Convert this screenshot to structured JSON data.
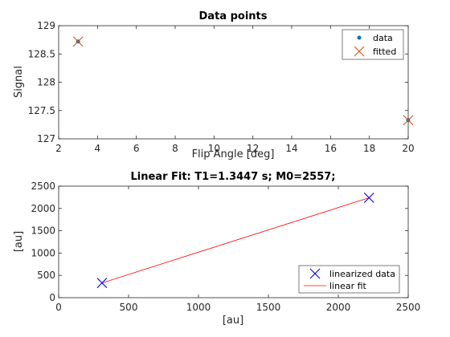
{
  "chart_data": [
    {
      "type": "scatter",
      "title": "Data points",
      "xlabel": "Flip Angle [deg]",
      "ylabel": "Signal",
      "xlim": [
        2,
        20
      ],
      "ylim": [
        127,
        129
      ],
      "xticks": [
        "2",
        "4",
        "6",
        "8",
        "10",
        "12",
        "14",
        "16",
        "18",
        "20"
      ],
      "yticks": [
        "127",
        "127.5",
        "128",
        "128.5",
        "129"
      ],
      "grid": false,
      "legend": "top-right",
      "series": [
        {
          "name": "data",
          "marker": "dot",
          "color": "#0072BD",
          "x": [
            3,
            20
          ],
          "y": [
            128.72,
            127.33
          ]
        },
        {
          "name": "fitted",
          "marker": "x",
          "color": "#D95319",
          "x": [
            3,
            20
          ],
          "y": [
            128.72,
            127.33
          ]
        }
      ]
    },
    {
      "type": "line",
      "title": "Linear Fit: T1=1.3447 s; M0=2557;",
      "xlabel": "[au]",
      "ylabel": "[au]",
      "xlim": [
        0,
        2500
      ],
      "ylim": [
        0,
        2500
      ],
      "xticks": [
        "0",
        "500",
        "1000",
        "1500",
        "2000",
        "2500"
      ],
      "yticks": [
        "0",
        "500",
        "1000",
        "1500",
        "2000",
        "2500"
      ],
      "grid": false,
      "legend": "bottom-right",
      "series": [
        {
          "name": "linearized data",
          "marker": "x",
          "color": "#0000FF",
          "x": [
            310,
            2220
          ],
          "y": [
            330,
            2240
          ]
        },
        {
          "name": "linear fit",
          "marker": "line",
          "color": "#FF0000",
          "x": [
            310,
            2220
          ],
          "y": [
            330,
            2240
          ]
        }
      ]
    }
  ]
}
